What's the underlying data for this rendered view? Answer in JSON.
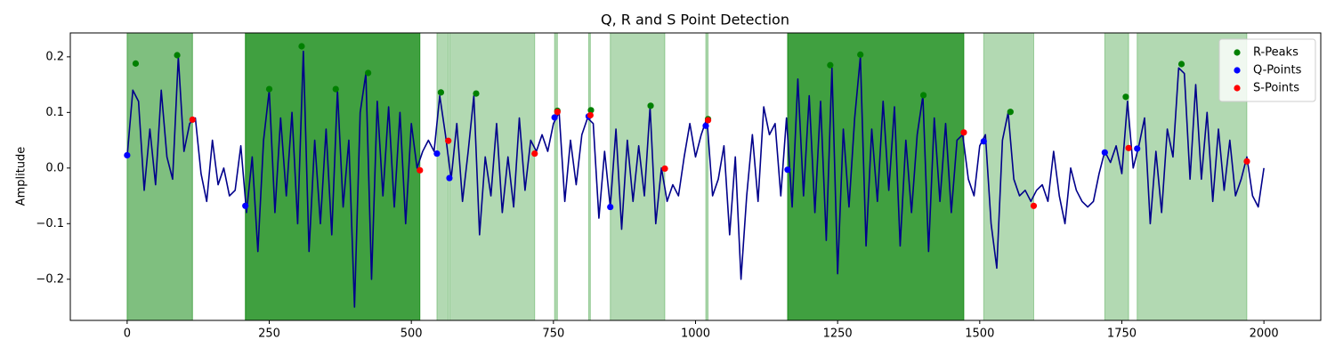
{
  "chart_data": {
    "type": "line",
    "title": "Q, R and S Point Detection",
    "ylabel": "Amplitude",
    "xlim": [
      -100,
      2100
    ],
    "ylim": [
      -0.274,
      0.243
    ],
    "xticks": [
      0,
      250,
      500,
      750,
      1000,
      1250,
      1500,
      1750,
      2000
    ],
    "yticks": [
      {
        "value": -0.2,
        "label": "−0.2"
      },
      {
        "value": -0.1,
        "label": "−0.1"
      },
      {
        "value": 0,
        "label": "0.0"
      },
      0.1,
      0.2
    ],
    "legend": "upper right",
    "span_color": "green",
    "spans": [
      {
        "x0": 0,
        "x1": 115,
        "alpha": 0.5
      },
      {
        "x0": 208,
        "x1": 515,
        "alpha": 0.75
      },
      {
        "x0": 545,
        "x1": 565,
        "alpha": 0.3
      },
      {
        "x0": 567,
        "x1": 717,
        "alpha": 0.3
      },
      {
        "x0": 752,
        "x1": 757,
        "alpha": 0.3
      },
      {
        "x0": 812,
        "x1": 815,
        "alpha": 0.3
      },
      {
        "x0": 850,
        "x1": 946,
        "alpha": 0.3
      },
      {
        "x0": 1018,
        "x1": 1022,
        "alpha": 0.3
      },
      {
        "x0": 1162,
        "x1": 1472,
        "alpha": 0.75
      },
      {
        "x0": 1507,
        "x1": 1595,
        "alpha": 0.3
      },
      {
        "x0": 1720,
        "x1": 1762,
        "alpha": 0.3
      },
      {
        "x0": 1777,
        "x1": 1970,
        "alpha": 0.3
      }
    ],
    "x": [
      0,
      10,
      20,
      30,
      40,
      50,
      60,
      70,
      80,
      90,
      100,
      110,
      120,
      130,
      140,
      150,
      160,
      170,
      180,
      190,
      200,
      210,
      220,
      230,
      240,
      250,
      260,
      270,
      280,
      290,
      300,
      310,
      320,
      330,
      340,
      350,
      360,
      370,
      380,
      390,
      400,
      410,
      420,
      430,
      440,
      450,
      460,
      470,
      480,
      490,
      500,
      510,
      520,
      530,
      540,
      550,
      560,
      570,
      580,
      590,
      600,
      610,
      620,
      630,
      640,
      650,
      660,
      670,
      680,
      690,
      700,
      710,
      720,
      730,
      740,
      750,
      760,
      770,
      780,
      790,
      800,
      810,
      820,
      830,
      840,
      850,
      860,
      870,
      880,
      890,
      900,
      910,
      920,
      930,
      940,
      950,
      960,
      970,
      980,
      990,
      1000,
      1010,
      1020,
      1030,
      1040,
      1050,
      1060,
      1070,
      1080,
      1090,
      1100,
      1110,
      1120,
      1130,
      1140,
      1150,
      1160,
      1170,
      1180,
      1190,
      1200,
      1210,
      1220,
      1230,
      1240,
      1250,
      1260,
      1270,
      1280,
      1290,
      1300,
      1310,
      1320,
      1330,
      1340,
      1350,
      1360,
      1370,
      1380,
      1390,
      1400,
      1410,
      1420,
      1430,
      1440,
      1450,
      1460,
      1470,
      1480,
      1490,
      1500,
      1510,
      1520,
      1530,
      1540,
      1550,
      1560,
      1570,
      1580,
      1590,
      1600,
      1610,
      1620,
      1630,
      1640,
      1650,
      1660,
      1670,
      1680,
      1690,
      1700,
      1710,
      1720,
      1730,
      1740,
      1750,
      1760,
      1770,
      1780,
      1790,
      1800,
      1810,
      1820,
      1830,
      1840,
      1850,
      1860,
      1870,
      1880,
      1890,
      1900,
      1910,
      1920,
      1930,
      1940,
      1950,
      1960,
      1970,
      1980,
      1990,
      2000
    ],
    "signal": {
      "color": "#00008b",
      "values": [
        0.02,
        0.14,
        0.12,
        -0.04,
        0.07,
        -0.03,
        0.14,
        0.02,
        -0.02,
        0.2,
        0.03,
        0.08,
        0.09,
        -0.01,
        -0.06,
        0.05,
        -0.03,
        0.0,
        -0.05,
        -0.04,
        0.04,
        -0.08,
        0.02,
        -0.15,
        0.05,
        0.14,
        -0.08,
        0.09,
        -0.05,
        0.1,
        -0.1,
        0.21,
        -0.15,
        0.05,
        -0.1,
        0.07,
        -0.12,
        0.14,
        -0.07,
        0.05,
        -0.25,
        0.1,
        0.17,
        -0.2,
        0.12,
        -0.05,
        0.11,
        -0.07,
        0.1,
        -0.1,
        0.08,
        0.0,
        0.03,
        0.05,
        0.03,
        0.13,
        0.06,
        -0.02,
        0.08,
        -0.06,
        0.03,
        0.13,
        -0.12,
        0.02,
        -0.05,
        0.08,
        -0.08,
        0.02,
        -0.07,
        0.09,
        -0.04,
        0.05,
        0.03,
        0.06,
        0.03,
        0.08,
        0.1,
        -0.06,
        0.05,
        -0.03,
        0.06,
        0.09,
        0.08,
        -0.09,
        0.03,
        -0.07,
        0.07,
        -0.11,
        0.05,
        -0.06,
        0.04,
        -0.05,
        0.11,
        -0.1,
        0.0,
        -0.06,
        -0.03,
        -0.05,
        0.02,
        0.08,
        0.02,
        0.06,
        0.09,
        -0.05,
        -0.02,
        0.04,
        -0.12,
        0.02,
        -0.2,
        -0.05,
        0.06,
        -0.06,
        0.11,
        0.06,
        0.08,
        -0.05,
        0.09,
        -0.07,
        0.16,
        -0.05,
        0.13,
        -0.08,
        0.12,
        -0.13,
        0.18,
        -0.19,
        0.07,
        -0.07,
        0.09,
        0.2,
        -0.14,
        0.07,
        -0.06,
        0.12,
        -0.04,
        0.11,
        -0.14,
        0.05,
        -0.08,
        0.06,
        0.13,
        -0.15,
        0.09,
        -0.06,
        0.08,
        -0.08,
        0.05,
        0.06,
        -0.02,
        -0.05,
        0.04,
        0.06,
        -0.1,
        -0.18,
        0.05,
        0.1,
        -0.02,
        -0.05,
        -0.04,
        -0.06,
        -0.04,
        -0.03,
        -0.06,
        0.03,
        -0.05,
        -0.1,
        0.0,
        -0.04,
        -0.06,
        -0.07,
        -0.06,
        -0.01,
        0.03,
        0.01,
        0.04,
        -0.01,
        0.12,
        0.0,
        0.04,
        0.09,
        -0.1,
        0.03,
        -0.08,
        0.07,
        0.02,
        0.18,
        0.17,
        -0.02,
        0.15,
        -0.02,
        0.1,
        -0.06,
        0.07,
        -0.04,
        0.05,
        -0.05,
        -0.02,
        0.02,
        -0.05,
        -0.07,
        0.0
      ]
    },
    "series": [
      {
        "name": "R-Peaks",
        "color": "green",
        "x": [
          15,
          88,
          250,
          307,
          367,
          424,
          552,
          614,
          757,
          816,
          921,
          1022,
          1237,
          1290,
          1401,
          1554,
          1757,
          1855
        ],
        "values": [
          0.188,
          0.203,
          0.142,
          0.219,
          0.142,
          0.171,
          0.136,
          0.134,
          0.103,
          0.104,
          0.112,
          0.088,
          0.185,
          0.204,
          0.131,
          0.101,
          0.128,
          0.187
        ]
      },
      {
        "name": "Q-Points",
        "color": "blue",
        "x": [
          0,
          208,
          545,
          567,
          752,
          812,
          850,
          1018,
          1162,
          1507,
          1720,
          1777
        ],
        "values": [
          0.023,
          -0.068,
          0.026,
          -0.018,
          0.091,
          0.093,
          -0.07,
          0.076,
          -0.003,
          0.048,
          0.028,
          0.035
        ]
      },
      {
        "name": "S-Points",
        "color": "red",
        "x": [
          115,
          515,
          565,
          717,
          757,
          815,
          946,
          1022,
          1472,
          1595,
          1762,
          1970
        ],
        "values": [
          0.087,
          -0.004,
          0.049,
          0.026,
          0.101,
          0.095,
          -0.001,
          0.086,
          0.064,
          -0.068,
          0.036,
          0.012
        ]
      }
    ]
  }
}
